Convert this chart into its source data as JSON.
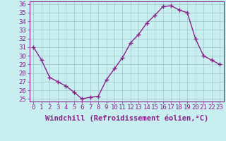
{
  "x": [
    0,
    1,
    2,
    3,
    4,
    5,
    6,
    7,
    8,
    9,
    10,
    11,
    12,
    13,
    14,
    15,
    16,
    17,
    18,
    19,
    20,
    21,
    22,
    23
  ],
  "y": [
    31.0,
    29.5,
    27.5,
    27.0,
    26.5,
    25.8,
    25.0,
    25.2,
    25.3,
    27.2,
    28.5,
    29.8,
    31.5,
    32.5,
    33.8,
    34.7,
    35.7,
    35.8,
    35.3,
    35.0,
    32.0,
    30.0,
    29.5,
    29.0
  ],
  "line_color": "#882288",
  "marker": "+",
  "marker_size": 4,
  "bg_color": "#c8eef0",
  "grid_color": "#a0c8c8",
  "xlabel": "Windchill (Refroidissement éolien,°C)",
  "xlabel_fontsize": 7.5,
  "tick_fontsize": 6.5,
  "ylim_min": 24.7,
  "ylim_max": 36.3,
  "yticks": [
    25,
    26,
    27,
    28,
    29,
    30,
    31,
    32,
    33,
    34,
    35,
    36
  ],
  "xticks": [
    0,
    1,
    2,
    3,
    4,
    5,
    6,
    7,
    8,
    9,
    10,
    11,
    12,
    13,
    14,
    15,
    16,
    17,
    18,
    19,
    20,
    21,
    22,
    23
  ],
  "spine_color": "#882288",
  "line_width": 1.0
}
